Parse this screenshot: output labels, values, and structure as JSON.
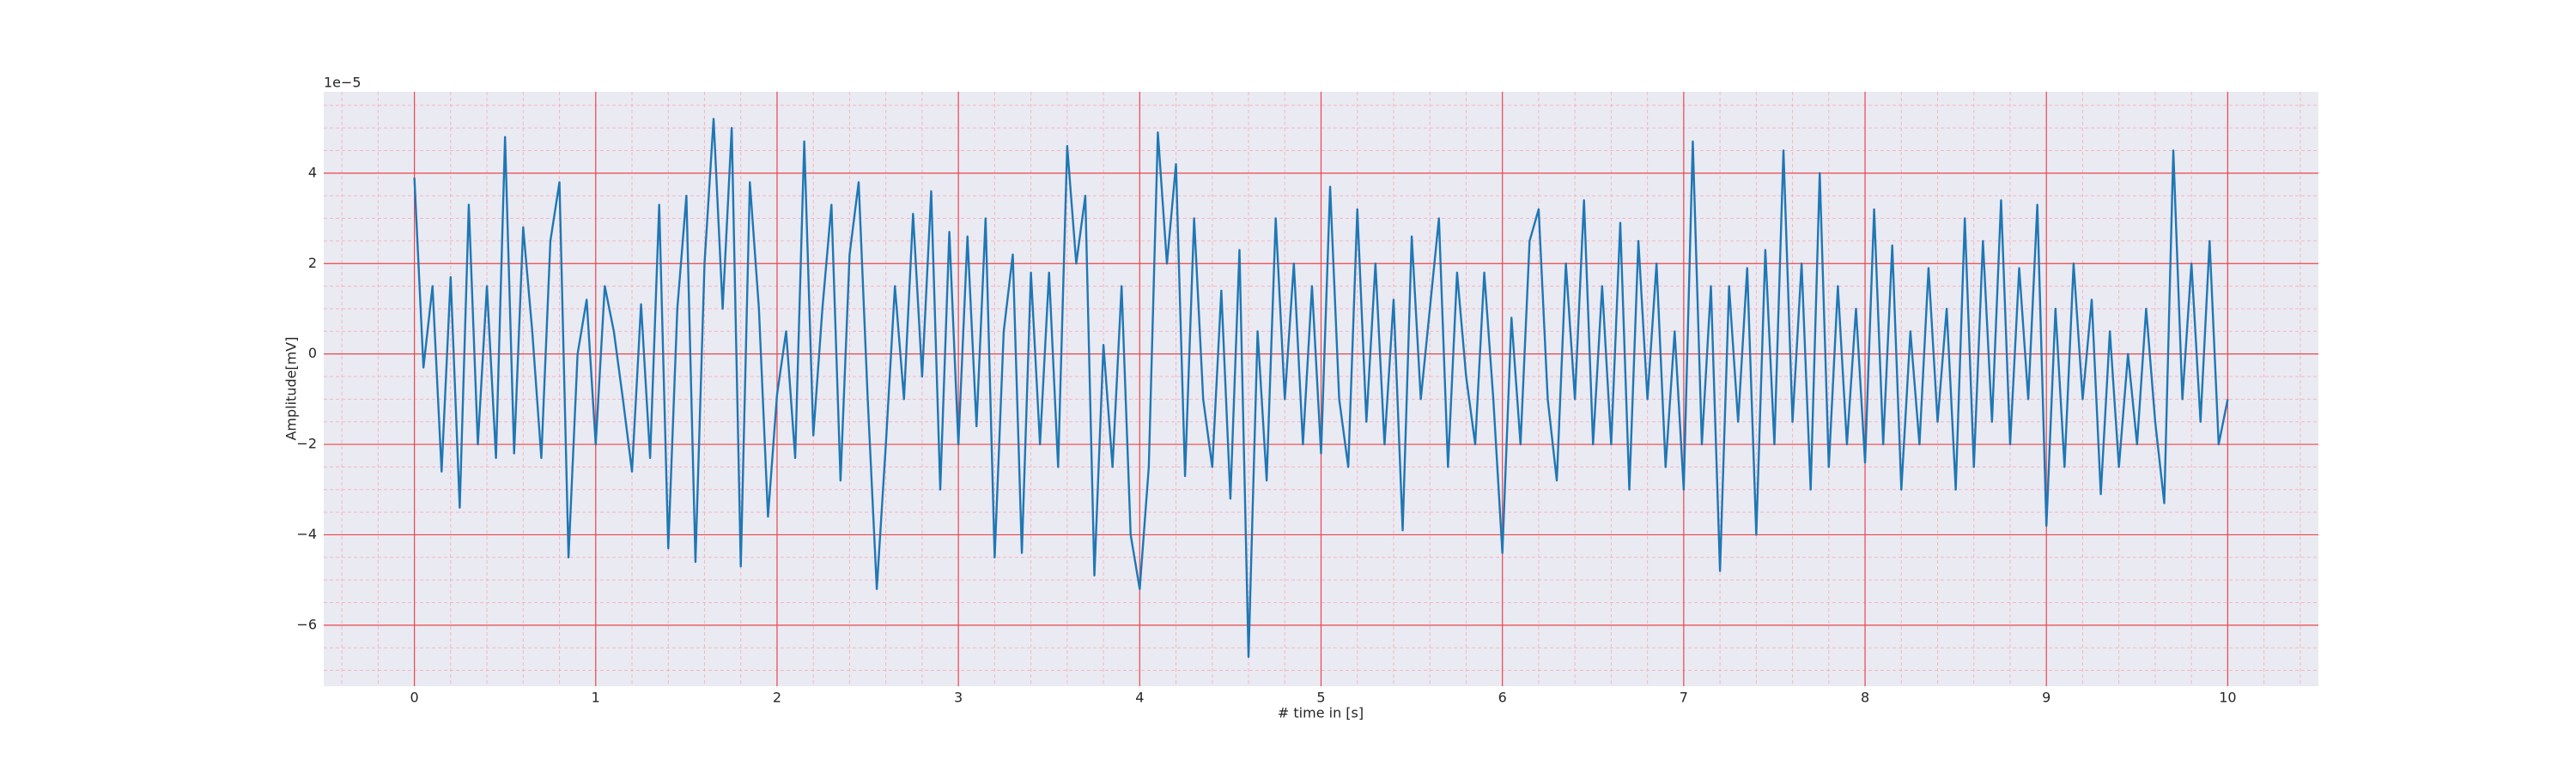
{
  "chart_data": {
    "type": "line",
    "xlabel": "# time in [s]",
    "ylabel": "Amplitude[mV]",
    "y_offset_label": "1e−5",
    "color": "#1f77b4",
    "grid": true,
    "minor_grid": true,
    "xlim": [
      -0.5,
      10.5
    ],
    "xticks": [
      0,
      1,
      2,
      3,
      4,
      5,
      6,
      7,
      8,
      9,
      10
    ],
    "ylim": [
      -7.35e-05,
      5.8e-05
    ],
    "yticks": [
      {
        "value": -6e-05,
        "label": "−6"
      },
      {
        "value": -4e-05,
        "label": "−4"
      },
      {
        "value": -2e-05,
        "label": "−2"
      },
      0,
      {
        "value": 2e-05,
        "label": "2"
      },
      {
        "value": 4e-05,
        "label": "4"
      }
    ],
    "x": [
      0,
      0.05,
      0.1,
      0.15,
      0.2,
      0.25,
      0.3,
      0.35,
      0.4,
      0.45,
      0.5,
      0.55,
      0.6,
      0.65,
      0.7,
      0.75,
      0.8,
      0.85,
      0.9,
      0.95,
      1,
      1.05,
      1.1,
      1.15,
      1.2,
      1.25,
      1.3,
      1.35,
      1.4,
      1.45,
      1.5,
      1.55,
      1.6,
      1.65,
      1.7,
      1.75,
      1.8,
      1.85,
      1.9,
      1.95,
      2,
      2.05,
      2.1,
      2.15,
      2.2,
      2.25,
      2.3,
      2.35,
      2.4,
      2.45,
      2.5,
      2.55,
      2.6,
      2.65,
      2.7,
      2.75,
      2.8,
      2.85,
      2.9,
      2.95,
      3,
      3.05,
      3.1,
      3.15,
      3.2,
      3.25,
      3.3,
      3.35,
      3.4,
      3.45,
      3.5,
      3.55,
      3.6,
      3.65,
      3.7,
      3.75,
      3.8,
      3.85,
      3.9,
      3.95,
      4,
      4.05,
      4.1,
      4.15,
      4.2,
      4.25,
      4.3,
      4.35,
      4.4,
      4.45,
      4.5,
      4.55,
      4.6,
      4.65,
      4.7,
      4.75,
      4.8,
      4.85,
      4.9,
      4.95,
      5,
      5.05,
      5.1,
      5.15,
      5.2,
      5.25,
      5.3,
      5.35,
      5.4,
      5.45,
      5.5,
      5.55,
      5.6,
      5.65,
      5.7,
      5.75,
      5.8,
      5.85,
      5.9,
      5.95,
      6,
      6.05,
      6.1,
      6.15,
      6.2,
      6.25,
      6.3,
      6.35,
      6.4,
      6.45,
      6.5,
      6.55,
      6.6,
      6.65,
      6.7,
      6.75,
      6.8,
      6.85,
      6.9,
      6.95,
      7,
      7.05,
      7.1,
      7.15,
      7.2,
      7.25,
      7.3,
      7.35,
      7.4,
      7.45,
      7.5,
      7.55,
      7.6,
      7.65,
      7.7,
      7.75,
      7.8,
      7.85,
      7.9,
      7.95,
      8,
      8.05,
      8.1,
      8.15,
      8.2,
      8.25,
      8.3,
      8.35,
      8.4,
      8.45,
      8.5,
      8.55,
      8.6,
      8.65,
      8.7,
      8.75,
      8.8,
      8.85,
      8.9,
      8.95,
      9,
      9.05,
      9.1,
      9.15,
      9.2,
      9.25,
      9.3,
      9.35,
      9.4,
      9.45,
      9.5,
      9.55,
      9.6,
      9.65,
      9.7,
      9.75,
      9.8,
      9.85,
      9.9,
      9.95,
      10
    ],
    "values": [
      3.9e-05,
      -3e-06,
      1.5e-05,
      -2.6e-05,
      1.7e-05,
      -3.4e-05,
      3.3e-05,
      -2e-05,
      1.5e-05,
      -2.3e-05,
      4.8e-05,
      -2.2e-05,
      2.8e-05,
      5e-06,
      -2.3e-05,
      2.5e-05,
      3.8e-05,
      -4.5e-05,
      0,
      1.2e-05,
      -2e-05,
      1.5e-05,
      5e-06,
      -1e-05,
      -2.6e-05,
      1.1e-05,
      -2.3e-05,
      3.3e-05,
      -4.3e-05,
      1e-05,
      3.5e-05,
      -4.6e-05,
      2e-05,
      5.2e-05,
      1e-05,
      5e-05,
      -4.7e-05,
      3.8e-05,
      1e-05,
      -3.6e-05,
      -9e-06,
      5e-06,
      -2.3e-05,
      4.7e-05,
      -1.8e-05,
      1e-05,
      3.3e-05,
      -2.8e-05,
      2.2e-05,
      3.8e-05,
      -1e-05,
      -5.2e-05,
      -2e-05,
      1.5e-05,
      -1e-05,
      3.1e-05,
      -5e-06,
      3.6e-05,
      -3e-05,
      2.7e-05,
      -2e-05,
      2.6e-05,
      -1.6e-05,
      3e-05,
      -4.5e-05,
      5e-06,
      2.2e-05,
      -4.4e-05,
      1.8e-05,
      -2e-05,
      1.8e-05,
      -2.5e-05,
      4.6e-05,
      2e-05,
      3.5e-05,
      -4.9e-05,
      2e-06,
      -2.5e-05,
      1.5e-05,
      -4e-05,
      -5.2e-05,
      -2.5e-05,
      4.9e-05,
      2e-05,
      4.2e-05,
      -2.7e-05,
      3e-05,
      -1e-05,
      -2.5e-05,
      1.4e-05,
      -3.2e-05,
      2.3e-05,
      -6.7e-05,
      5e-06,
      -2.8e-05,
      3e-05,
      -1e-05,
      2e-05,
      -2e-05,
      1.5e-05,
      -2.2e-05,
      3.7e-05,
      -1e-05,
      -2.5e-05,
      3.2e-05,
      -1.5e-05,
      2e-05,
      -2e-05,
      1.2e-05,
      -3.9e-05,
      2.6e-05,
      -1e-05,
      1e-05,
      3e-05,
      -2.5e-05,
      1.8e-05,
      -5e-06,
      -2e-05,
      1.8e-05,
      -1e-05,
      -4.4e-05,
      8e-06,
      -2e-05,
      2.5e-05,
      3.2e-05,
      -1e-05,
      -2.8e-05,
      2e-05,
      -1e-05,
      3.4e-05,
      -2e-05,
      1.5e-05,
      -2e-05,
      2.9e-05,
      -3e-05,
      2.5e-05,
      -1e-05,
      2e-05,
      -2.5e-05,
      5e-06,
      -3e-05,
      4.7e-05,
      -2e-05,
      1.5e-05,
      -4.8e-05,
      1.5e-05,
      -1.5e-05,
      1.9e-05,
      -4e-05,
      2.3e-05,
      -2e-05,
      4.5e-05,
      -1.5e-05,
      2e-05,
      -3e-05,
      4e-05,
      -2.5e-05,
      1.5e-05,
      -2e-05,
      1e-05,
      -2.4e-05,
      3.2e-05,
      -2e-05,
      2.4e-05,
      -3e-05,
      5e-06,
      -2e-05,
      1.9e-05,
      -1.5e-05,
      1e-05,
      -3e-05,
      3e-05,
      -2.5e-05,
      2.5e-05,
      -1.5e-05,
      3.4e-05,
      -2e-05,
      1.9e-05,
      -1e-05,
      3.3e-05,
      -3.8e-05,
      1e-05,
      -2.5e-05,
      2e-05,
      -1e-05,
      1.2e-05,
      -3.1e-05,
      5e-06,
      -2.5e-05,
      0,
      -2e-05,
      1e-05,
      -1.5e-05,
      -3.3e-05,
      4.5e-05,
      -1e-05,
      2e-05,
      -1.5e-05,
      2.5e-05,
      -2e-05,
      -1e-05
    ]
  }
}
